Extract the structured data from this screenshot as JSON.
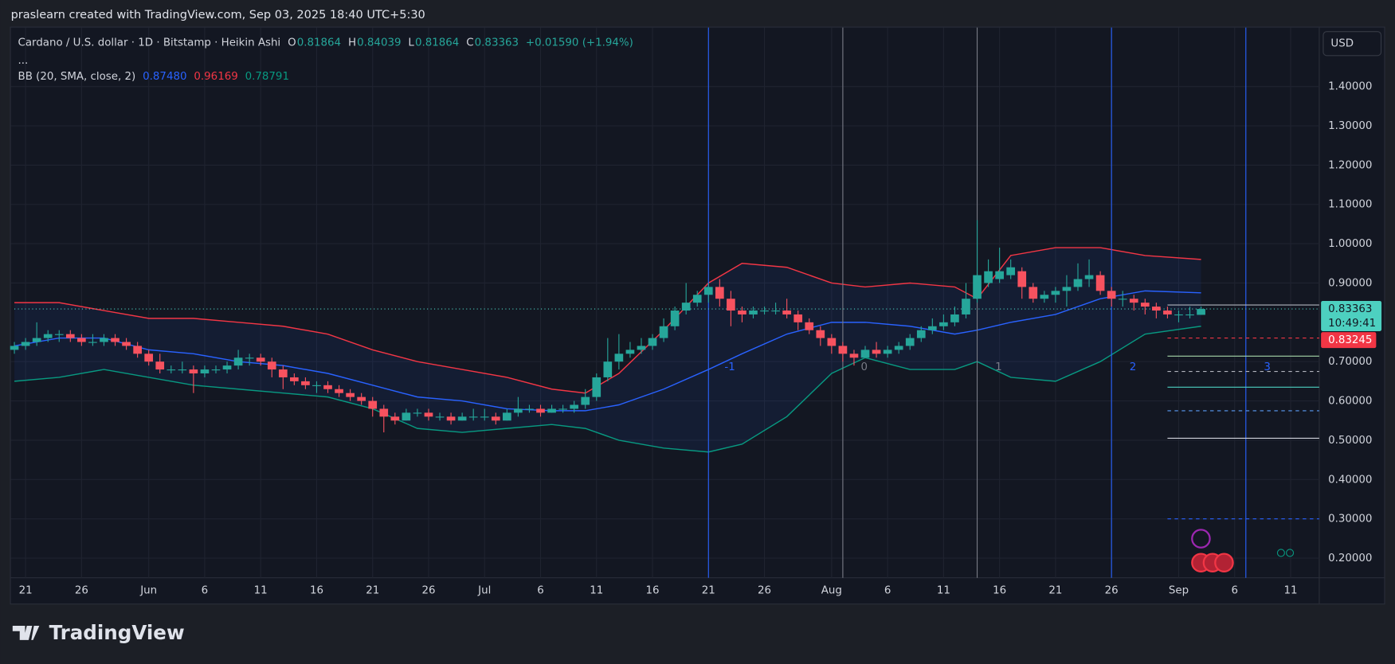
{
  "chart_data": {
    "type": "candlestick",
    "credit": "praslearn created with TradingView.com, Sep 03, 2025 18:40 UTC+5:30",
    "title": "Cardano / U.S. dollar · 1D · Bitstamp · Heikin Ashi",
    "ohlc": [
      {
        "k": "O",
        "v": "0.81864"
      },
      {
        "k": "H",
        "v": "0.84039"
      },
      {
        "k": "L",
        "v": "0.81864"
      },
      {
        "k": "C",
        "v": "0.83363"
      }
    ],
    "change": "+0.01590 (+1.94%)",
    "more": "...",
    "currency": "USD",
    "logo": "TradingView",
    "up_color": "#26a69a",
    "down_color": "#f7525f",
    "x": [
      "May 20",
      "May 21",
      "May 22",
      "May 23",
      "May 24",
      "May 25",
      "May 26",
      "May 27",
      "May 28",
      "May 29",
      "May 30",
      "May 31",
      "Jun 1",
      "Jun 2",
      "Jun 3",
      "Jun 4",
      "Jun 5",
      "Jun 6",
      "Jun 7",
      "Jun 8",
      "Jun 9",
      "Jun 10",
      "Jun 11",
      "Jun 12",
      "Jun 13",
      "Jun 14",
      "Jun 15",
      "Jun 16",
      "Jun 17",
      "Jun 18",
      "Jun 19",
      "Jun 20",
      "Jun 21",
      "Jun 22",
      "Jun 23",
      "Jun 24",
      "Jun 25",
      "Jun 26",
      "Jun 27",
      "Jun 28",
      "Jun 29",
      "Jun 30",
      "Jul 1",
      "Jul 2",
      "Jul 3",
      "Jul 4",
      "Jul 5",
      "Jul 6",
      "Jul 7",
      "Jul 8",
      "Jul 9",
      "Jul 10",
      "Jul 11",
      "Jul 12",
      "Jul 13",
      "Jul 14",
      "Jul 15",
      "Jul 16",
      "Jul 17",
      "Jul 18",
      "Jul 19",
      "Jul 20",
      "Jul 21",
      "Jul 22",
      "Jul 23",
      "Jul 24",
      "Jul 25",
      "Jul 26",
      "Jul 27",
      "Jul 28",
      "Jul 29",
      "Jul 30",
      "Jul 31",
      "Aug 1",
      "Aug 2",
      "Aug 3",
      "Aug 4",
      "Aug 5",
      "Aug 6",
      "Aug 7",
      "Aug 8",
      "Aug 9",
      "Aug 10",
      "Aug 11",
      "Aug 12",
      "Aug 13",
      "Aug 14",
      "Aug 15",
      "Aug 16",
      "Aug 17",
      "Aug 18",
      "Aug 19",
      "Aug 20",
      "Aug 21",
      "Aug 22",
      "Aug 23",
      "Aug 24",
      "Aug 25",
      "Aug 26",
      "Aug 27",
      "Aug 28",
      "Aug 29",
      "Aug 30",
      "Aug 31",
      "Sep 1",
      "Sep 2",
      "Sep 3"
    ],
    "candles": [
      [
        0.73,
        0.75,
        0.72,
        0.74
      ],
      [
        0.74,
        0.76,
        0.73,
        0.75
      ],
      [
        0.75,
        0.8,
        0.74,
        0.76
      ],
      [
        0.76,
        0.78,
        0.75,
        0.77
      ],
      [
        0.77,
        0.78,
        0.75,
        0.77
      ],
      [
        0.77,
        0.78,
        0.75,
        0.76
      ],
      [
        0.76,
        0.77,
        0.74,
        0.75
      ],
      [
        0.75,
        0.77,
        0.74,
        0.75
      ],
      [
        0.75,
        0.77,
        0.74,
        0.76
      ],
      [
        0.76,
        0.77,
        0.74,
        0.75
      ],
      [
        0.75,
        0.76,
        0.73,
        0.74
      ],
      [
        0.74,
        0.75,
        0.71,
        0.72
      ],
      [
        0.72,
        0.73,
        0.69,
        0.7
      ],
      [
        0.7,
        0.72,
        0.67,
        0.68
      ],
      [
        0.68,
        0.69,
        0.67,
        0.68
      ],
      [
        0.68,
        0.7,
        0.67,
        0.68
      ],
      [
        0.68,
        0.69,
        0.62,
        0.67
      ],
      [
        0.67,
        0.69,
        0.66,
        0.68
      ],
      [
        0.68,
        0.69,
        0.67,
        0.68
      ],
      [
        0.68,
        0.7,
        0.67,
        0.69
      ],
      [
        0.69,
        0.73,
        0.68,
        0.71
      ],
      [
        0.71,
        0.72,
        0.69,
        0.71
      ],
      [
        0.71,
        0.72,
        0.69,
        0.7
      ],
      [
        0.7,
        0.71,
        0.66,
        0.68
      ],
      [
        0.68,
        0.69,
        0.63,
        0.66
      ],
      [
        0.66,
        0.67,
        0.64,
        0.65
      ],
      [
        0.65,
        0.66,
        0.63,
        0.64
      ],
      [
        0.64,
        0.65,
        0.62,
        0.64
      ],
      [
        0.64,
        0.65,
        0.62,
        0.63
      ],
      [
        0.63,
        0.64,
        0.61,
        0.62
      ],
      [
        0.62,
        0.63,
        0.6,
        0.61
      ],
      [
        0.61,
        0.62,
        0.59,
        0.6
      ],
      [
        0.6,
        0.61,
        0.56,
        0.58
      ],
      [
        0.58,
        0.59,
        0.52,
        0.56
      ],
      [
        0.56,
        0.57,
        0.54,
        0.55
      ],
      [
        0.55,
        0.58,
        0.55,
        0.57
      ],
      [
        0.57,
        0.58,
        0.56,
        0.57
      ],
      [
        0.57,
        0.58,
        0.55,
        0.56
      ],
      [
        0.56,
        0.57,
        0.55,
        0.56
      ],
      [
        0.56,
        0.57,
        0.54,
        0.55
      ],
      [
        0.55,
        0.57,
        0.55,
        0.56
      ],
      [
        0.56,
        0.58,
        0.55,
        0.56
      ],
      [
        0.56,
        0.58,
        0.55,
        0.56
      ],
      [
        0.56,
        0.57,
        0.54,
        0.55
      ],
      [
        0.55,
        0.58,
        0.55,
        0.57
      ],
      [
        0.57,
        0.61,
        0.56,
        0.58
      ],
      [
        0.58,
        0.59,
        0.57,
        0.58
      ],
      [
        0.58,
        0.59,
        0.56,
        0.57
      ],
      [
        0.57,
        0.59,
        0.57,
        0.58
      ],
      [
        0.58,
        0.59,
        0.57,
        0.58
      ],
      [
        0.58,
        0.6,
        0.57,
        0.59
      ],
      [
        0.59,
        0.63,
        0.58,
        0.61
      ],
      [
        0.61,
        0.67,
        0.6,
        0.66
      ],
      [
        0.66,
        0.76,
        0.65,
        0.7
      ],
      [
        0.7,
        0.77,
        0.68,
        0.72
      ],
      [
        0.72,
        0.75,
        0.71,
        0.73
      ],
      [
        0.73,
        0.76,
        0.72,
        0.74
      ],
      [
        0.74,
        0.77,
        0.73,
        0.76
      ],
      [
        0.76,
        0.81,
        0.75,
        0.79
      ],
      [
        0.79,
        0.84,
        0.78,
        0.83
      ],
      [
        0.83,
        0.9,
        0.82,
        0.85
      ],
      [
        0.85,
        0.88,
        0.84,
        0.87
      ],
      [
        0.87,
        0.9,
        0.85,
        0.89
      ],
      [
        0.89,
        0.91,
        0.84,
        0.86
      ],
      [
        0.86,
        0.88,
        0.79,
        0.83
      ],
      [
        0.83,
        0.84,
        0.8,
        0.82
      ],
      [
        0.82,
        0.84,
        0.81,
        0.83
      ],
      [
        0.83,
        0.84,
        0.82,
        0.83
      ],
      [
        0.83,
        0.85,
        0.82,
        0.83
      ],
      [
        0.83,
        0.86,
        0.81,
        0.82
      ],
      [
        0.82,
        0.83,
        0.78,
        0.8
      ],
      [
        0.8,
        0.81,
        0.77,
        0.78
      ],
      [
        0.78,
        0.79,
        0.74,
        0.76
      ],
      [
        0.76,
        0.77,
        0.72,
        0.74
      ],
      [
        0.74,
        0.75,
        0.7,
        0.72
      ],
      [
        0.72,
        0.73,
        0.69,
        0.71
      ],
      [
        0.71,
        0.74,
        0.71,
        0.73
      ],
      [
        0.73,
        0.75,
        0.71,
        0.72
      ],
      [
        0.72,
        0.74,
        0.71,
        0.73
      ],
      [
        0.73,
        0.75,
        0.72,
        0.74
      ],
      [
        0.74,
        0.77,
        0.73,
        0.76
      ],
      [
        0.76,
        0.79,
        0.75,
        0.78
      ],
      [
        0.78,
        0.81,
        0.77,
        0.79
      ],
      [
        0.79,
        0.82,
        0.78,
        0.8
      ],
      [
        0.8,
        0.84,
        0.79,
        0.82
      ],
      [
        0.82,
        0.9,
        0.81,
        0.86
      ],
      [
        0.86,
        1.06,
        0.85,
        0.92
      ],
      [
        0.9,
        0.96,
        0.89,
        0.93
      ],
      [
        0.91,
        0.99,
        0.9,
        0.93
      ],
      [
        0.92,
        0.96,
        0.91,
        0.94
      ],
      [
        0.93,
        0.94,
        0.86,
        0.89
      ],
      [
        0.89,
        0.9,
        0.85,
        0.86
      ],
      [
        0.86,
        0.88,
        0.85,
        0.87
      ],
      [
        0.87,
        0.89,
        0.85,
        0.88
      ],
      [
        0.88,
        0.92,
        0.84,
        0.89
      ],
      [
        0.89,
        0.95,
        0.88,
        0.91
      ],
      [
        0.91,
        0.96,
        0.89,
        0.92
      ],
      [
        0.92,
        0.93,
        0.87,
        0.88
      ],
      [
        0.88,
        0.89,
        0.84,
        0.86
      ],
      [
        0.86,
        0.88,
        0.84,
        0.86
      ],
      [
        0.86,
        0.87,
        0.83,
        0.85
      ],
      [
        0.85,
        0.86,
        0.82,
        0.84
      ],
      [
        0.84,
        0.85,
        0.81,
        0.83
      ],
      [
        0.83,
        0.84,
        0.81,
        0.82
      ],
      [
        0.82,
        0.83,
        0.8,
        0.82
      ],
      [
        0.82,
        0.84,
        0.81,
        0.82
      ],
      [
        0.819,
        0.84,
        0.819,
        0.834
      ]
    ],
    "bands": {
      "label": "BB (20, SMA, close, 2)",
      "x": [
        "May 20",
        "May 24",
        "May 28",
        "Jun 1",
        "Jun 5",
        "Jun 9",
        "Jun 13",
        "Jun 17",
        "Jun 21",
        "Jun 25",
        "Jun 29",
        "Jul 3",
        "Jul 7",
        "Jul 10",
        "Jul 13",
        "Jul 17",
        "Jul 21",
        "Jul 24",
        "Jul 28",
        "Aug 1",
        "Aug 4",
        "Aug 8",
        "Aug 12",
        "Aug 14",
        "Aug 17",
        "Aug 21",
        "Aug 25",
        "Aug 29",
        "Sep 3"
      ],
      "middle": {
        "color": "#2962ff",
        "last_label": "0.87480",
        "values": [
          0.74,
          0.76,
          0.76,
          0.73,
          0.72,
          0.7,
          0.69,
          0.67,
          0.64,
          0.61,
          0.6,
          0.58,
          0.575,
          0.575,
          0.59,
          0.63,
          0.68,
          0.72,
          0.77,
          0.8,
          0.8,
          0.79,
          0.77,
          0.78,
          0.8,
          0.82,
          0.86,
          0.88,
          0.875
        ]
      },
      "upper": {
        "color": "#f23645",
        "last_label": "0.96169",
        "values": [
          0.85,
          0.85,
          0.83,
          0.81,
          0.81,
          0.8,
          0.79,
          0.77,
          0.73,
          0.7,
          0.68,
          0.66,
          0.63,
          0.62,
          0.67,
          0.78,
          0.9,
          0.95,
          0.94,
          0.9,
          0.89,
          0.9,
          0.89,
          0.86,
          0.97,
          0.99,
          0.99,
          0.97,
          0.96
        ]
      },
      "lower": {
        "color": "#089981",
        "last_label": "0.78791",
        "values": [
          0.65,
          0.66,
          0.68,
          0.66,
          0.64,
          0.63,
          0.62,
          0.61,
          0.58,
          0.53,
          0.52,
          0.53,
          0.54,
          0.53,
          0.5,
          0.48,
          0.47,
          0.49,
          0.56,
          0.67,
          0.71,
          0.68,
          0.68,
          0.7,
          0.66,
          0.65,
          0.7,
          0.77,
          0.79
        ]
      }
    },
    "time_zones": [
      {
        "x": "Jul 21",
        "label": "-1",
        "color": "#2962ff"
      },
      {
        "x": "Aug 2",
        "label": "0",
        "color": "#787b86"
      },
      {
        "x": "Aug 14",
        "label": "1",
        "color": "#787b86"
      },
      {
        "x": "Aug 26",
        "label": "2",
        "color": "#2962ff"
      },
      {
        "x": "Sep 7",
        "label": "3",
        "color": "#2962ff"
      }
    ],
    "levels": [
      {
        "value": 0.834,
        "from": "May 20",
        "color": "#4dd0c0",
        "dash": "1 3"
      },
      {
        "value": 0.844,
        "from": "Aug 31",
        "color": "#b2b5be",
        "dash": ""
      },
      {
        "value": 0.76,
        "from": "Aug 31",
        "color": "#f23645",
        "dash": "4 4"
      },
      {
        "value": 0.714,
        "from": "Aug 31",
        "color": "#a5d6a7",
        "dash": ""
      },
      {
        "value": 0.675,
        "from": "Aug 31",
        "color": "#b2b5be",
        "dash": "4 4"
      },
      {
        "value": 0.635,
        "from": "Aug 31",
        "color": "#4dd0c0",
        "dash": ""
      },
      {
        "value": 0.575,
        "from": "Aug 31",
        "color": "#5b9cf6",
        "dash": "4 4"
      },
      {
        "value": 0.505,
        "from": "Aug 31",
        "color": "#d1d4dc",
        "dash": ""
      },
      {
        "value": 0.3,
        "from": "Aug 31",
        "color": "#2962ff",
        "dash": "4 4"
      }
    ],
    "last_price": {
      "label": "0.83363",
      "timer": "10:49:41"
    },
    "prev_price": {
      "label": "0.83245"
    },
    "xlim": [
      "May 20",
      "Sep 13"
    ],
    "ylim": [
      0.15,
      1.55
    ],
    "xticks": [
      {
        "value": "May 21",
        "label": "21"
      },
      {
        "value": "May 26",
        "label": "26"
      },
      {
        "value": "Jun 1",
        "label": "Jun"
      },
      {
        "value": "Jun 6",
        "label": "6"
      },
      {
        "value": "Jun 11",
        "label": "11"
      },
      {
        "value": "Jun 16",
        "label": "16"
      },
      {
        "value": "Jun 21",
        "label": "21"
      },
      {
        "value": "Jun 26",
        "label": "26"
      },
      {
        "value": "Jul 1",
        "label": "Jul"
      },
      {
        "value": "Jul 6",
        "label": "6"
      },
      {
        "value": "Jul 11",
        "label": "11"
      },
      {
        "value": "Jul 16",
        "label": "16"
      },
      {
        "value": "Jul 21",
        "label": "21"
      },
      {
        "value": "Jul 26",
        "label": "26"
      },
      {
        "value": "Aug 1",
        "label": "Aug"
      },
      {
        "value": "Aug 6",
        "label": "6"
      },
      {
        "value": "Aug 11",
        "label": "11"
      },
      {
        "value": "Aug 16",
        "label": "16"
      },
      {
        "value": "Aug 21",
        "label": "21"
      },
      {
        "value": "Aug 26",
        "label": "26"
      },
      {
        "value": "Sep 1",
        "label": "Sep"
      },
      {
        "value": "Sep 6",
        "label": "6"
      },
      {
        "value": "Sep 11",
        "label": "11"
      }
    ],
    "yticks": [
      {
        "value": 1.4,
        "label": "1.40000"
      },
      {
        "value": 1.3,
        "label": "1.30000"
      },
      {
        "value": 1.2,
        "label": "1.20000"
      },
      {
        "value": 1.1,
        "label": "1.10000"
      },
      {
        "value": 1,
        "label": "1.00000"
      },
      {
        "value": 0.9,
        "label": "0.90000"
      },
      {
        "value": 0.7,
        "label": "0.70000"
      },
      {
        "value": 0.6,
        "label": "0.60000"
      },
      {
        "value": 0.5,
        "label": "0.50000"
      },
      {
        "value": 0.4,
        "label": "0.40000"
      },
      {
        "value": 0.3,
        "label": "0.30000"
      },
      {
        "value": 0.2,
        "label": "0.20000"
      }
    ],
    "grid": true
  }
}
